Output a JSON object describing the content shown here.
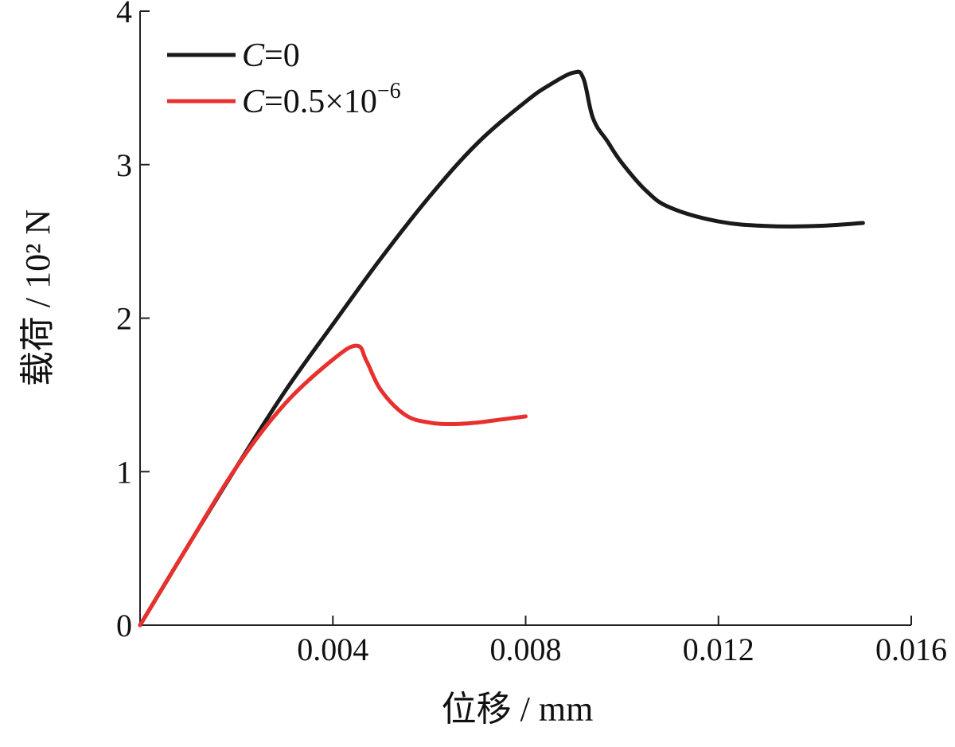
{
  "chart_data": {
    "type": "line",
    "title": "",
    "xlabel": "位移 / mm",
    "ylabel": "载荷 / 10² N",
    "xlim": [
      0,
      0.016
    ],
    "ylim": [
      0,
      4
    ],
    "x_ticks": [
      0.004,
      0.008,
      0.012,
      0.016
    ],
    "x_tick_labels": [
      "0.004",
      "0.008",
      "0.012",
      "0.016"
    ],
    "y_ticks": [
      0,
      1,
      2,
      3,
      4
    ],
    "y_tick_labels": [
      "0",
      "1",
      "2",
      "3",
      "4"
    ],
    "grid": false,
    "legend_position": "top-left",
    "series": [
      {
        "name": "C=0",
        "legend": {
          "var": "C",
          "text": "=0",
          "exp": ""
        },
        "color": "#1a1a1a",
        "x": [
          0,
          0.001,
          0.002,
          0.003,
          0.004,
          0.005,
          0.006,
          0.007,
          0.008,
          0.0085,
          0.009,
          0.0092,
          0.0094,
          0.0097,
          0.01,
          0.0105,
          0.011,
          0.012,
          0.013,
          0.014,
          0.015
        ],
        "y": [
          0,
          0.52,
          1.03,
          1.52,
          1.96,
          2.39,
          2.79,
          3.14,
          3.41,
          3.52,
          3.6,
          3.56,
          3.3,
          3.15,
          3.01,
          2.83,
          2.72,
          2.63,
          2.6,
          2.6,
          2.62
        ]
      },
      {
        "name": "C=0.5×10⁻⁶",
        "legend": {
          "var": "C",
          "text": "=0.5×10",
          "exp": "−6"
        },
        "color": "#e8302e",
        "x": [
          0,
          0.001,
          0.002,
          0.003,
          0.004,
          0.0045,
          0.0047,
          0.005,
          0.0055,
          0.006,
          0.0065,
          0.007,
          0.0075,
          0.008
        ],
        "y": [
          0,
          0.52,
          1.03,
          1.44,
          1.73,
          1.82,
          1.72,
          1.53,
          1.37,
          1.32,
          1.31,
          1.32,
          1.34,
          1.36
        ]
      }
    ]
  }
}
